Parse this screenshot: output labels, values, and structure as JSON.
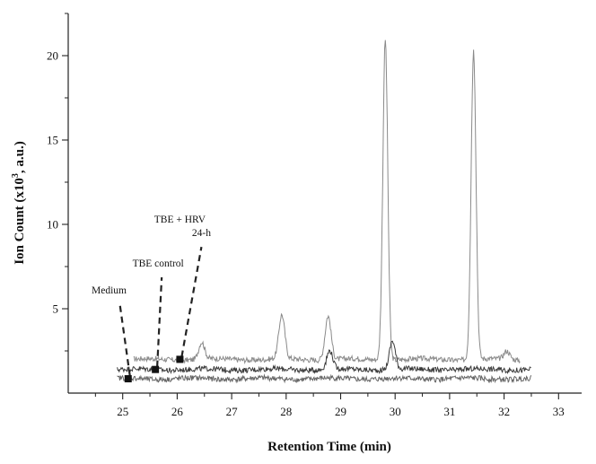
{
  "chart_data": {
    "type": "line",
    "title": "",
    "xlabel": "Retention Time (min)",
    "ylabel_main": "Ion Count (x10",
    "ylabel_sup": "3",
    "ylabel_end": ", a.u.)",
    "xlim": [
      24.0,
      33.5
    ],
    "ylim": [
      0,
      22.5
    ],
    "xticks": [
      25,
      26,
      27,
      28,
      29,
      30,
      31,
      32,
      33
    ],
    "xtick_labels": [
      "25",
      "26",
      "27",
      "28",
      "29",
      "30",
      "31",
      "32",
      "33"
    ],
    "yticks": [
      5,
      10,
      15,
      20
    ],
    "ytick_labels": [
      "5",
      "10",
      "15",
      "20"
    ],
    "grid": false,
    "series": [
      {
        "name": "TBE + HRV 24-h",
        "color": "#8a8a8a",
        "baseline": 2.0,
        "start": 25.2,
        "end": 32.3,
        "peaks": [
          {
            "x": 26.45,
            "y": 3.0
          },
          {
            "x": 27.92,
            "y": 4.6
          },
          {
            "x": 28.77,
            "y": 4.6
          },
          {
            "x": 29.82,
            "y": 21.0
          },
          {
            "x": 31.44,
            "y": 20.3
          },
          {
            "x": 32.05,
            "y": 2.5
          }
        ]
      },
      {
        "name": "TBE control",
        "color": "#3a3a3a",
        "baseline": 1.4,
        "start": 24.9,
        "end": 32.5,
        "peaks": [
          {
            "x": 28.8,
            "y": 2.5
          },
          {
            "x": 29.95,
            "y": 3.1
          }
        ]
      },
      {
        "name": "Medium",
        "color": "#666666",
        "baseline": 0.85,
        "start": 24.9,
        "end": 32.5,
        "peaks": []
      }
    ],
    "annotations": [
      {
        "lines": [
          "TBE + HRV",
          "24-h"
        ],
        "marker": {
          "x": 26.05,
          "y": 2.0
        },
        "text_x": 26.05,
        "text_y": 10.1
      },
      {
        "lines": [
          "TBE control"
        ],
        "marker": {
          "x": 25.6,
          "y": 1.4
        },
        "text_x": 25.65,
        "text_y": 7.5
      },
      {
        "lines": [
          "Medium"
        ],
        "marker": {
          "x": 25.1,
          "y": 0.85
        },
        "text_x": 24.75,
        "text_y": 5.9
      }
    ]
  }
}
